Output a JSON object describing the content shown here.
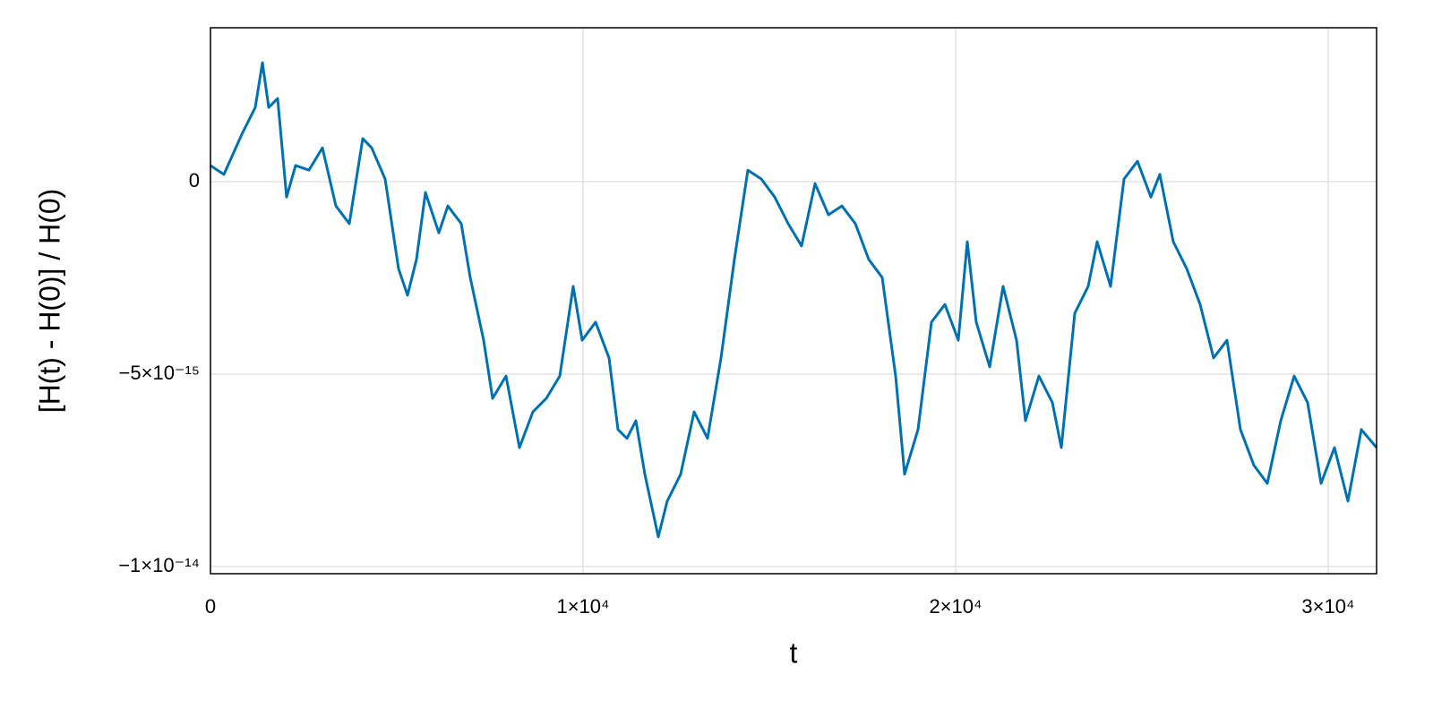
{
  "chart_data": {
    "type": "line",
    "x_label": "t",
    "y_label": "[H(t) - H(0)] / H(0)",
    "xlim": [
      0,
      31300
    ],
    "ylim": [
      -1.0186e-14,
      4e-15
    ],
    "xticks": [
      0,
      {
        "value": 10000,
        "label": "1×10⁴"
      },
      {
        "value": 20000,
        "label": "2×10⁴"
      },
      {
        "value": 30000,
        "label": "3×10⁴"
      }
    ],
    "yticks": [
      {
        "value": -1e-14,
        "label": "−1×10⁻¹⁴"
      },
      {
        "value": -5e-15,
        "label": "−5×10⁻¹⁵"
      },
      0
    ],
    "grid": true,
    "x": [
      0,
      361,
      841,
      1202,
      1394,
      1563,
      1803,
      2043,
      2284,
      2644,
      3005,
      3366,
      3726,
      4087,
      4327,
      4688,
      5048,
      5289,
      5529,
      5770,
      6130,
      6371,
      6731,
      6972,
      7332,
      7573,
      7933,
      8294,
      8654,
      9015,
      9376,
      9736,
      9977,
      10337,
      10698,
      10938,
      11179,
      11419,
      11659,
      12020,
      12260,
      12621,
      12982,
      13342,
      13703,
      14063,
      14424,
      14785,
      15145,
      15506,
      15866,
      16227,
      16588,
      16948,
      17309,
      17669,
      18030,
      18391,
      18631,
      18992,
      19352,
      19713,
      20073,
      20314,
      20554,
      20915,
      21275,
      21636,
      21876,
      22237,
      22598,
      22838,
      23199,
      23559,
      23800,
      24160,
      24521,
      24882,
      25242,
      25482,
      25843,
      26204,
      26564,
      26925,
      27285,
      27646,
      28007,
      28367,
      28728,
      29088,
      29449,
      29810,
      30170,
      30531,
      30891,
      31300
    ],
    "series": [
      {
        "name": "H",
        "color": "#0072b2",
        "values": [
          4.2e-16,
          1.9e-16,
          1.23e-15,
          1.93e-15,
          3.09e-15,
          1.93e-15,
          2.16e-15,
          -4e-16,
          4.2e-16,
          3e-16,
          8.8e-16,
          -6.3e-16,
          -1.09e-15,
          1.12e-15,
          8.8e-16,
          7e-17,
          -2.26e-15,
          -2.95e-15,
          -2.02e-15,
          -2.8e-16,
          -1.33e-15,
          -6.3e-16,
          -1.09e-15,
          -2.49e-15,
          -4.12e-15,
          -5.63e-15,
          -5.05e-15,
          -6.91e-15,
          -5.98e-15,
          -5.63e-15,
          -5.05e-15,
          -2.72e-15,
          -4.12e-15,
          -3.65e-15,
          -4.58e-15,
          -6.44e-15,
          -6.67e-15,
          -6.21e-15,
          -7.6e-15,
          -9.23e-15,
          -8.3e-15,
          -7.6e-15,
          -5.98e-15,
          -6.67e-15,
          -4.58e-15,
          -2.02e-15,
          3e-16,
          7e-17,
          -4e-16,
          -1.09e-15,
          -1.67e-15,
          -5e-17,
          -8.6e-16,
          -6.3e-16,
          -1.09e-15,
          -2.02e-15,
          -2.49e-15,
          -5.05e-15,
          -7.6e-15,
          -6.44e-15,
          -3.65e-15,
          -3.19e-15,
          -4.12e-15,
          -1.56e-15,
          -3.65e-15,
          -4.81e-15,
          -2.72e-15,
          -4.12e-15,
          -6.21e-15,
          -5.05e-15,
          -5.74e-15,
          -6.91e-15,
          -3.42e-15,
          -2.72e-15,
          -1.56e-15,
          -2.72e-15,
          7e-17,
          5.3e-16,
          -4e-16,
          1.9e-16,
          -1.56e-15,
          -2.26e-15,
          -3.19e-15,
          -4.58e-15,
          -4.12e-15,
          -6.44e-15,
          -7.37e-15,
          -7.84e-15,
          -6.21e-15,
          -5.05e-15,
          -5.74e-15,
          -7.84e-15,
          -6.91e-15,
          -8.3e-15,
          -6.44e-15,
          -6.91e-15
        ]
      }
    ]
  }
}
